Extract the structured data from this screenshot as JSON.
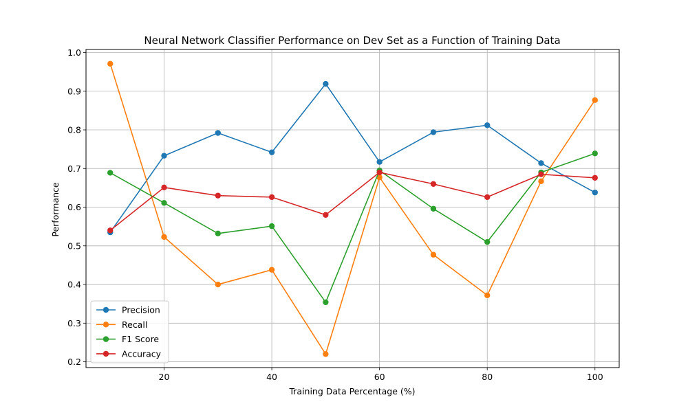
{
  "chart_data": {
    "type": "line",
    "title": "Neural Network Classifier Performance on Dev Set as a Function of Training Data",
    "xlabel": "Training Data Percentage (%)",
    "ylabel": "Performance",
    "x": [
      10,
      20,
      30,
      40,
      50,
      60,
      70,
      80,
      90,
      100
    ],
    "xlim": [
      5.5,
      104.5
    ],
    "ylim": [
      0.185,
      1.008
    ],
    "xticks": [
      20,
      40,
      60,
      80,
      100
    ],
    "yticks": [
      0.2,
      0.3,
      0.4,
      0.5,
      0.6,
      0.7,
      0.8,
      0.9,
      1.0
    ],
    "xtick_labels": [
      "20",
      "40",
      "60",
      "80",
      "100"
    ],
    "ytick_labels": [
      "0.2",
      "0.3",
      "0.4",
      "0.5",
      "0.6",
      "0.7",
      "0.8",
      "0.9",
      "1.0"
    ],
    "grid": true,
    "legend_position": "lower-left",
    "series": [
      {
        "name": "Precision",
        "color": "#1f77b4",
        "values": [
          0.535,
          0.733,
          0.792,
          0.742,
          0.919,
          0.717,
          0.794,
          0.812,
          0.714,
          0.638
        ]
      },
      {
        "name": "Recall",
        "color": "#ff7f0e",
        "values": [
          0.971,
          0.523,
          0.4,
          0.438,
          0.22,
          0.677,
          0.477,
          0.372,
          0.667,
          0.877
        ]
      },
      {
        "name": "F1 Score",
        "color": "#2ca02c",
        "values": [
          0.689,
          0.611,
          0.532,
          0.551,
          0.354,
          0.695,
          0.596,
          0.51,
          0.69,
          0.739
        ]
      },
      {
        "name": "Accuracy",
        "color": "#d62728",
        "values": [
          0.54,
          0.651,
          0.63,
          0.626,
          0.58,
          0.69,
          0.66,
          0.626,
          0.685,
          0.676
        ]
      }
    ]
  }
}
